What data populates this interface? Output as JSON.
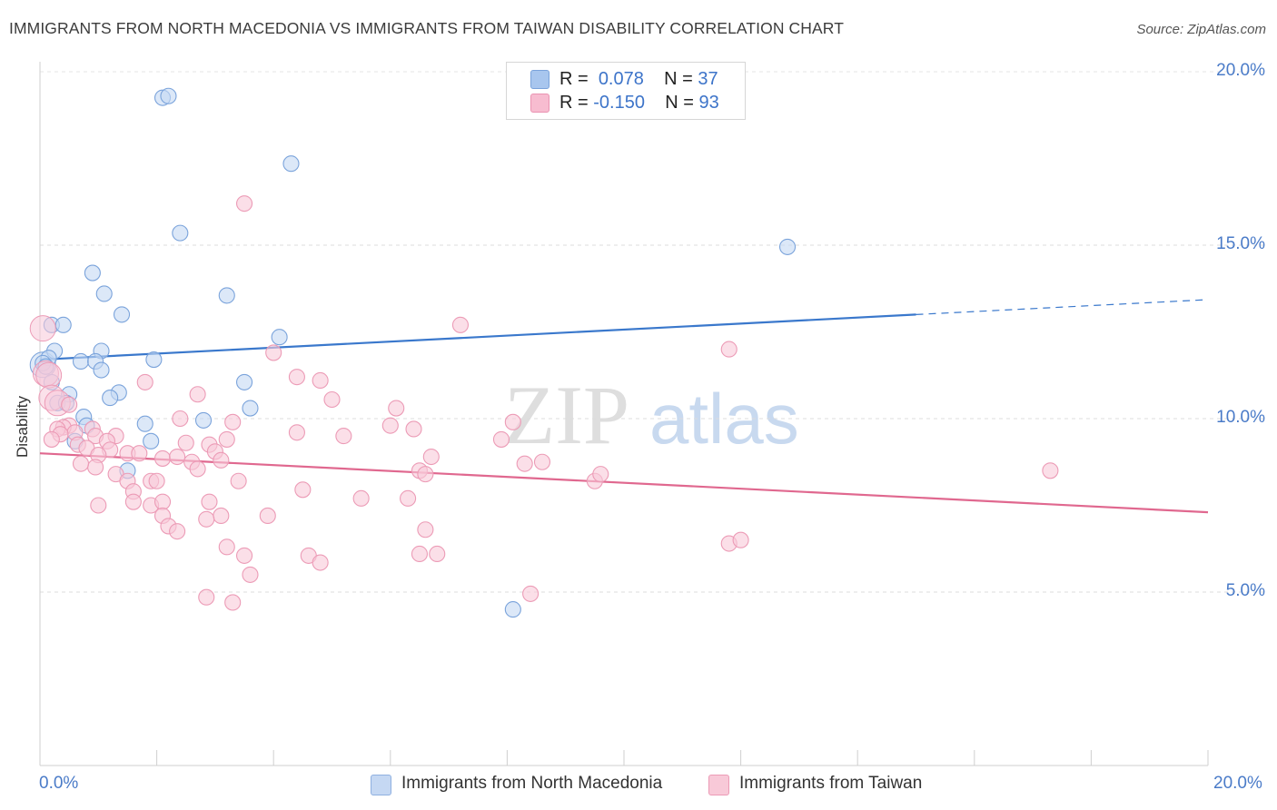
{
  "header": {
    "title": "IMMIGRANTS FROM NORTH MACEDONIA VS IMMIGRANTS FROM TAIWAN DISABILITY CORRELATION CHART",
    "source": "Source: ZipAtlas.com"
  },
  "legend": {
    "r_label": "R =",
    "n_label": "N =",
    "rows": [
      {
        "r": "0.078",
        "n": "37",
        "color": "#a8c6ee",
        "border": "#7aa3db"
      },
      {
        "r": "-0.150",
        "n": "93",
        "color": "#f7bcd0",
        "border": "#ea93b1"
      }
    ]
  },
  "bottom_legend": [
    {
      "label": "Immigrants from North Macedonia",
      "color": "#c5d8f3",
      "border": "#8fb0e0"
    },
    {
      "label": "Immigrants from Taiwan",
      "color": "#f8c9d8",
      "border": "#ec9bb6"
    }
  ],
  "watermark": {
    "zip": "ZIP",
    "atlas": "atlas"
  },
  "chart_data": {
    "type": "scatter",
    "title": "IMMIGRANTS FROM NORTH MACEDONIA VS IMMIGRANTS FROM TAIWAN DISABILITY CORRELATION CHART",
    "xlabel": "",
    "ylabel": "Disability",
    "xlim": [
      0,
      20
    ],
    "ylim": [
      0,
      20
    ],
    "x_tick_labels": [
      "0.0%",
      "20.0%"
    ],
    "y_ticks": [
      5,
      10,
      15,
      20
    ],
    "y_tick_labels": [
      "5.0%",
      "10.0%",
      "15.0%",
      "20.0%"
    ],
    "grid": true,
    "series": [
      {
        "name": "Immigrants from North Macedonia",
        "color": "#7aa3db",
        "fill": "#c5d8f3",
        "trend_color": "#3a78cc",
        "trend": {
          "x0": 0,
          "y0": 11.7,
          "x1": 15.0,
          "y1": 13.0,
          "x_dash_end": 20.0,
          "y_dash_end": 13.43
        },
        "points": [
          [
            2.1,
            19.25
          ],
          [
            2.2,
            19.3
          ],
          [
            4.3,
            17.35
          ],
          [
            12.8,
            14.95
          ],
          [
            2.4,
            15.35
          ],
          [
            0.9,
            14.2
          ],
          [
            1.1,
            13.6
          ],
          [
            3.2,
            13.55
          ],
          [
            1.4,
            13.0
          ],
          [
            0.2,
            12.7
          ],
          [
            0.4,
            12.7
          ],
          [
            4.1,
            12.35
          ],
          [
            0.25,
            11.95
          ],
          [
            1.05,
            11.95
          ],
          [
            0.15,
            11.75
          ],
          [
            0.7,
            11.65
          ],
          [
            0.95,
            11.65
          ],
          [
            1.95,
            11.7
          ],
          [
            0.05,
            11.6
          ],
          [
            0.1,
            11.5
          ],
          [
            1.05,
            11.4
          ],
          [
            0.2,
            11.05
          ],
          [
            3.5,
            11.05
          ],
          [
            0.5,
            10.7
          ],
          [
            1.35,
            10.75
          ],
          [
            1.2,
            10.6
          ],
          [
            0.3,
            10.45
          ],
          [
            0.45,
            10.45
          ],
          [
            3.6,
            10.3
          ],
          [
            0.75,
            10.05
          ],
          [
            2.8,
            9.95
          ],
          [
            1.8,
            9.85
          ],
          [
            0.8,
            9.8
          ],
          [
            0.6,
            9.35
          ],
          [
            1.9,
            9.35
          ],
          [
            1.5,
            8.5
          ],
          [
            8.1,
            4.5
          ]
        ],
        "big_points": [
          [
            0.05,
            11.55
          ]
        ]
      },
      {
        "name": "Immigrants from Taiwan",
        "color": "#ec9bb6",
        "fill": "#f8c9d8",
        "trend_color": "#e0688f",
        "trend": {
          "x0": 0,
          "y0": 9.0,
          "x1": 20.0,
          "y1": 7.3
        },
        "points": [
          [
            3.5,
            16.2
          ],
          [
            7.2,
            12.7
          ],
          [
            11.8,
            12.0
          ],
          [
            4.0,
            11.9
          ],
          [
            4.4,
            11.2
          ],
          [
            4.8,
            11.1
          ],
          [
            1.8,
            11.05
          ],
          [
            2.7,
            10.7
          ],
          [
            5.0,
            10.55
          ],
          [
            6.1,
            10.3
          ],
          [
            0.5,
            10.4
          ],
          [
            8.1,
            9.9
          ],
          [
            2.4,
            10.0
          ],
          [
            3.3,
            9.9
          ],
          [
            0.5,
            9.8
          ],
          [
            0.4,
            9.75
          ],
          [
            0.3,
            9.7
          ],
          [
            0.9,
            9.7
          ],
          [
            0.6,
            9.6
          ],
          [
            0.95,
            9.5
          ],
          [
            0.35,
            9.55
          ],
          [
            1.3,
            9.5
          ],
          [
            0.2,
            9.4
          ],
          [
            1.15,
            9.35
          ],
          [
            0.65,
            9.25
          ],
          [
            0.8,
            9.15
          ],
          [
            1.2,
            9.1
          ],
          [
            2.5,
            9.3
          ],
          [
            2.9,
            9.25
          ],
          [
            3.2,
            9.4
          ],
          [
            4.4,
            9.6
          ],
          [
            5.2,
            9.5
          ],
          [
            6.0,
            9.8
          ],
          [
            6.4,
            9.7
          ],
          [
            7.9,
            9.4
          ],
          [
            6.7,
            8.9
          ],
          [
            8.3,
            8.7
          ],
          [
            8.6,
            8.75
          ],
          [
            1.0,
            8.95
          ],
          [
            1.5,
            9.0
          ],
          [
            1.7,
            9.0
          ],
          [
            2.1,
            8.85
          ],
          [
            2.35,
            8.9
          ],
          [
            2.6,
            8.75
          ],
          [
            3.0,
            9.05
          ],
          [
            3.1,
            8.8
          ],
          [
            3.4,
            8.2
          ],
          [
            1.3,
            8.4
          ],
          [
            1.5,
            8.2
          ],
          [
            1.6,
            7.9
          ],
          [
            1.9,
            8.2
          ],
          [
            2.0,
            8.2
          ],
          [
            0.95,
            8.6
          ],
          [
            2.7,
            8.55
          ],
          [
            6.5,
            8.5
          ],
          [
            6.6,
            8.4
          ],
          [
            9.5,
            8.2
          ],
          [
            9.6,
            8.4
          ],
          [
            17.3,
            8.5
          ],
          [
            0.7,
            8.7
          ],
          [
            4.5,
            7.95
          ],
          [
            5.5,
            7.7
          ],
          [
            6.3,
            7.7
          ],
          [
            1.0,
            7.5
          ],
          [
            1.6,
            7.6
          ],
          [
            1.9,
            7.5
          ],
          [
            2.1,
            7.6
          ],
          [
            2.9,
            7.6
          ],
          [
            3.1,
            7.2
          ],
          [
            3.9,
            7.2
          ],
          [
            2.1,
            7.2
          ],
          [
            2.2,
            6.9
          ],
          [
            2.35,
            6.75
          ],
          [
            2.85,
            7.1
          ],
          [
            6.6,
            6.8
          ],
          [
            3.2,
            6.3
          ],
          [
            3.5,
            6.05
          ],
          [
            4.6,
            6.05
          ],
          [
            4.8,
            5.85
          ],
          [
            6.5,
            6.1
          ],
          [
            6.8,
            6.1
          ],
          [
            11.8,
            6.4
          ],
          [
            12.0,
            6.5
          ],
          [
            3.6,
            5.5
          ],
          [
            8.4,
            4.95
          ],
          [
            2.85,
            4.85
          ],
          [
            3.3,
            4.7
          ]
        ],
        "big_points": [
          [
            0.05,
            12.6
          ],
          [
            0.1,
            11.3
          ],
          [
            0.15,
            11.25
          ],
          [
            0.2,
            10.6
          ],
          [
            0.3,
            10.45
          ]
        ]
      }
    ]
  }
}
